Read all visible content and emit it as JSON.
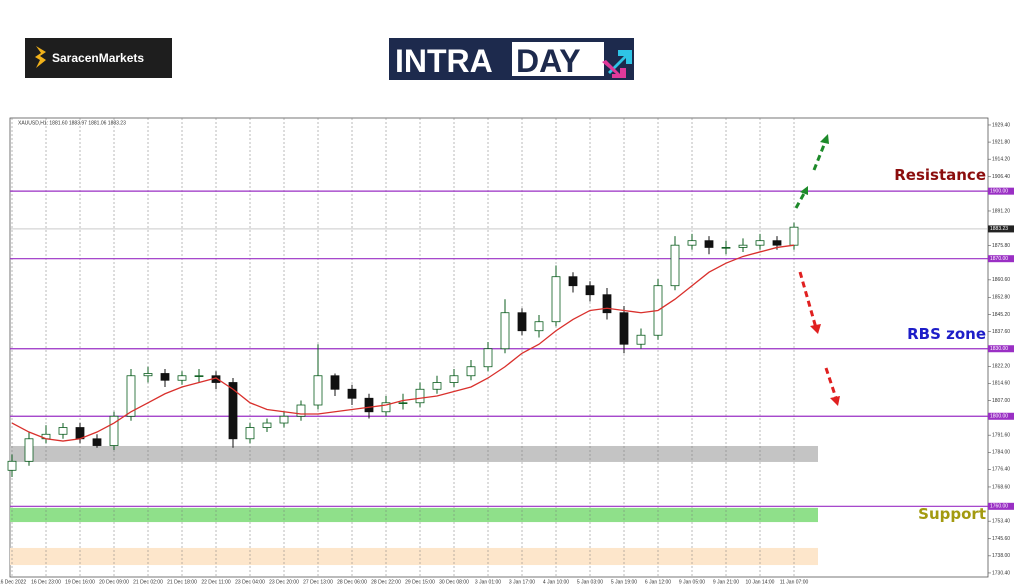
{
  "logos": {
    "broker": "SaracenMarkets",
    "intra": "INTRA",
    "day": "DAY"
  },
  "chart_data": {
    "type": "candlestick",
    "symbol_info": "XAUUSD,H1: 1881.60 1883.97 1881.06 1883.23",
    "categories": [
      "16 Dec 2022",
      null,
      "16 Dec 23:00",
      null,
      "19 Dec 16:00",
      null,
      "20 Dec 09:00",
      null,
      "21 Dec 02:00",
      null,
      "21 Dec 18:00",
      null,
      "22 Dec 11:00",
      null,
      "23 Dec 04:00",
      null,
      "23 Dec 20:00",
      null,
      "27 Dec 13:00",
      null,
      "28 Dec 06:00",
      null,
      "28 Dec 22:00",
      null,
      "29 Dec 15:00",
      null,
      "30 Dec 08:00",
      null,
      "3 Jan 01:00",
      null,
      "3 Jan 17:00",
      null,
      "4 Jan 10:00",
      null,
      "5 Jan 03:00",
      null,
      "5 Jan 19:00",
      null,
      "6 Jan 12:00",
      null,
      "9 Jan 05:00",
      null,
      "9 Jan 21:00",
      null,
      "10 Jan 14:00",
      null,
      "11 Jan 07:00"
    ],
    "open": [
      1776,
      1780,
      1790,
      1792,
      1795,
      1790,
      1787,
      1800,
      1818,
      1819,
      1816,
      1818,
      1818,
      1815,
      1790,
      1795,
      1797,
      1800,
      1805,
      1818,
      1812,
      1808,
      1802,
      1806,
      1806,
      1812,
      1815,
      1818,
      1822,
      1830,
      1846,
      1838,
      1842,
      1862,
      1858,
      1854,
      1846,
      1832,
      1836,
      1858,
      1876,
      1878,
      1875,
      1875,
      1876,
      1878,
      1876
    ],
    "high": [
      1783,
      1793,
      1796,
      1797,
      1797,
      1792,
      1802,
      1821,
      1822,
      1821,
      1820,
      1821,
      1820,
      1817,
      1797,
      1799,
      1802,
      1807,
      1832,
      1819,
      1814,
      1810,
      1809,
      1810,
      1815,
      1818,
      1821,
      1825,
      1833,
      1852,
      1848,
      1845,
      1867,
      1864,
      1860,
      1857,
      1849,
      1839,
      1861,
      1880,
      1881,
      1880,
      1878,
      1879,
      1881,
      1880,
      1886
    ],
    "low": [
      1773,
      1778,
      1788,
      1790,
      1788,
      1786,
      1785,
      1798,
      1815,
      1813,
      1814,
      1815,
      1812,
      1786,
      1788,
      1793,
      1795,
      1798,
      1803,
      1809,
      1805,
      1799,
      1800,
      1803,
      1804,
      1810,
      1813,
      1816,
      1820,
      1828,
      1836,
      1835,
      1840,
      1855,
      1851,
      1843,
      1828,
      1830,
      1834,
      1856,
      1874,
      1872,
      1872,
      1873,
      1874,
      1874,
      1874
    ],
    "close": [
      1780,
      1790,
      1792,
      1795,
      1790,
      1787,
      1800,
      1818,
      1819,
      1816,
      1818,
      1818,
      1815,
      1790,
      1795,
      1797,
      1800,
      1805,
      1818,
      1812,
      1808,
      1802,
      1806,
      1806,
      1812,
      1815,
      1818,
      1822,
      1830,
      1846,
      1838,
      1842,
      1862,
      1858,
      1854,
      1846,
      1832,
      1836,
      1858,
      1876,
      1878,
      1875,
      1875,
      1876,
      1878,
      1876,
      1884
    ],
    "up_color": "#0b5d1e",
    "down_color": "#111111",
    "moving_average": {
      "color": "#d9302c",
      "values": [
        1797,
        1793,
        1790,
        1789,
        1790,
        1793,
        1797,
        1802,
        1806,
        1810,
        1813,
        1815,
        1817,
        1812,
        1806,
        1803,
        1802,
        1801,
        1801,
        1802,
        1803,
        1804,
        1805,
        1807,
        1808,
        1809,
        1811,
        1813,
        1817,
        1822,
        1828,
        1832,
        1838,
        1843,
        1847,
        1848,
        1847,
        1846,
        1847,
        1852,
        1858,
        1864,
        1868,
        1871,
        1873,
        1875,
        1876
      ]
    },
    "ylim": [
      1728.6,
      1932.5
    ],
    "yticks": [
      {
        "value": 1929.4,
        "label": "1929.40"
      },
      {
        "value": 1921.8,
        "label": "1921.80"
      },
      {
        "value": 1914.2,
        "label": "1914.20"
      },
      {
        "value": 1906.4,
        "label": "1906.40"
      },
      {
        "value": 1891.2,
        "label": "1891.20"
      },
      {
        "value": 1875.8,
        "label": "1875.80"
      },
      {
        "value": 1860.6,
        "label": "1860.60"
      },
      {
        "value": 1852.8,
        "label": "1852.80"
      },
      {
        "value": 1845.2,
        "label": "1845.20"
      },
      {
        "value": 1837.6,
        "label": "1837.60"
      },
      {
        "value": 1822.2,
        "label": "1822.20"
      },
      {
        "value": 1814.6,
        "label": "1814.60"
      },
      {
        "value": 1807.0,
        "label": "1807.00"
      },
      {
        "value": 1791.6,
        "label": "1791.60"
      },
      {
        "value": 1784.0,
        "label": "1784.00"
      },
      {
        "value": 1776.4,
        "label": "1776.40"
      },
      {
        "value": 1768.6,
        "label": "1768.60"
      },
      {
        "value": 1753.4,
        "label": "1753.40"
      },
      {
        "value": 1745.6,
        "label": "1745.60"
      },
      {
        "value": 1738.0,
        "label": "1738.00"
      },
      {
        "value": 1730.4,
        "label": "1730.40"
      }
    ],
    "current_price": {
      "value": 1883.23,
      "label": "1883.23"
    },
    "level_color": "#9a2fc4",
    "levels": [
      {
        "value": 1900,
        "label": "1900.00"
      },
      {
        "value": 1870,
        "label": "1870.00"
      },
      {
        "value": 1830,
        "label": "1830.00"
      },
      {
        "value": 1800,
        "label": "1800.00"
      },
      {
        "value": 1760,
        "label": "1760.00"
      }
    ],
    "zones": [
      {
        "from": 1779.7,
        "to": 1786.8,
        "color": "#c4c4c4"
      },
      {
        "from": 1753.0,
        "to": 1759.3,
        "color": "#8fe08a"
      },
      {
        "from": 1733.9,
        "to": 1741.5,
        "color": "#fde6cb"
      }
    ],
    "annotations": {
      "resistance": "Resistance",
      "rbs_zone": "RBS zone",
      "support": "Support"
    }
  }
}
